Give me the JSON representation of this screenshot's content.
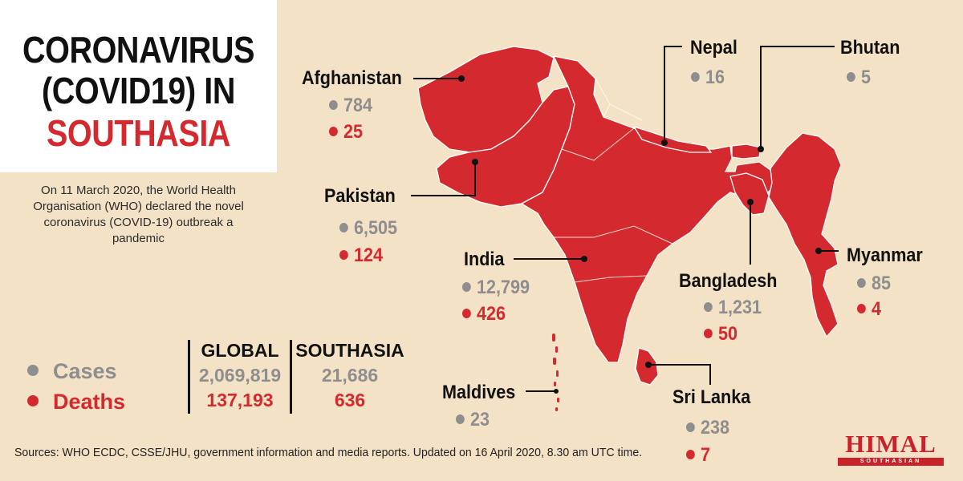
{
  "title": {
    "line1": "CORONAVIRUS",
    "line2": "(COVID19) IN",
    "line3": "SOUTHASIA"
  },
  "intro": "On 11 March 2020, the World Health Organisation (WHO) declared the novel coronavirus (COVID-19) outbreak a pandemic",
  "legend": {
    "cases": "Cases",
    "deaths": "Deaths"
  },
  "totals": {
    "global": {
      "label": "GLOBAL",
      "cases": "2,069,819",
      "deaths": "137,193"
    },
    "southasia": {
      "label": "SOUTHASIA",
      "cases": "21,686",
      "deaths": "636"
    }
  },
  "countries": {
    "afghanistan": {
      "name": "Afghanistan",
      "cases": "784",
      "deaths": "25"
    },
    "pakistan": {
      "name": "Pakistan",
      "cases": "6,505",
      "deaths": "124"
    },
    "india": {
      "name": "India",
      "cases": "12,799",
      "deaths": "426"
    },
    "nepal": {
      "name": "Nepal",
      "cases": "16"
    },
    "bhutan": {
      "name": "Bhutan",
      "cases": "5"
    },
    "bangladesh": {
      "name": "Bangladesh",
      "cases": "1,231",
      "deaths": "50"
    },
    "myanmar": {
      "name": "Myanmar",
      "cases": "85",
      "deaths": "4"
    },
    "sri_lanka": {
      "name": "Sri Lanka",
      "cases": "238",
      "deaths": "7"
    },
    "maldives": {
      "name": "Maldives",
      "cases": "23"
    }
  },
  "sources": "Sources: WHO ECDC, CSSE/JHU, government information and media reports. Updated on 16 April 2020, 8.30 am UTC time.",
  "logo": {
    "name": "HIMAL",
    "sub": "SOUTHASIAN"
  },
  "colors": {
    "map_fill": "#d42a2f",
    "background": "#f3e2c6",
    "cases": "#8e8e8e",
    "deaths": "#d42a2f"
  }
}
